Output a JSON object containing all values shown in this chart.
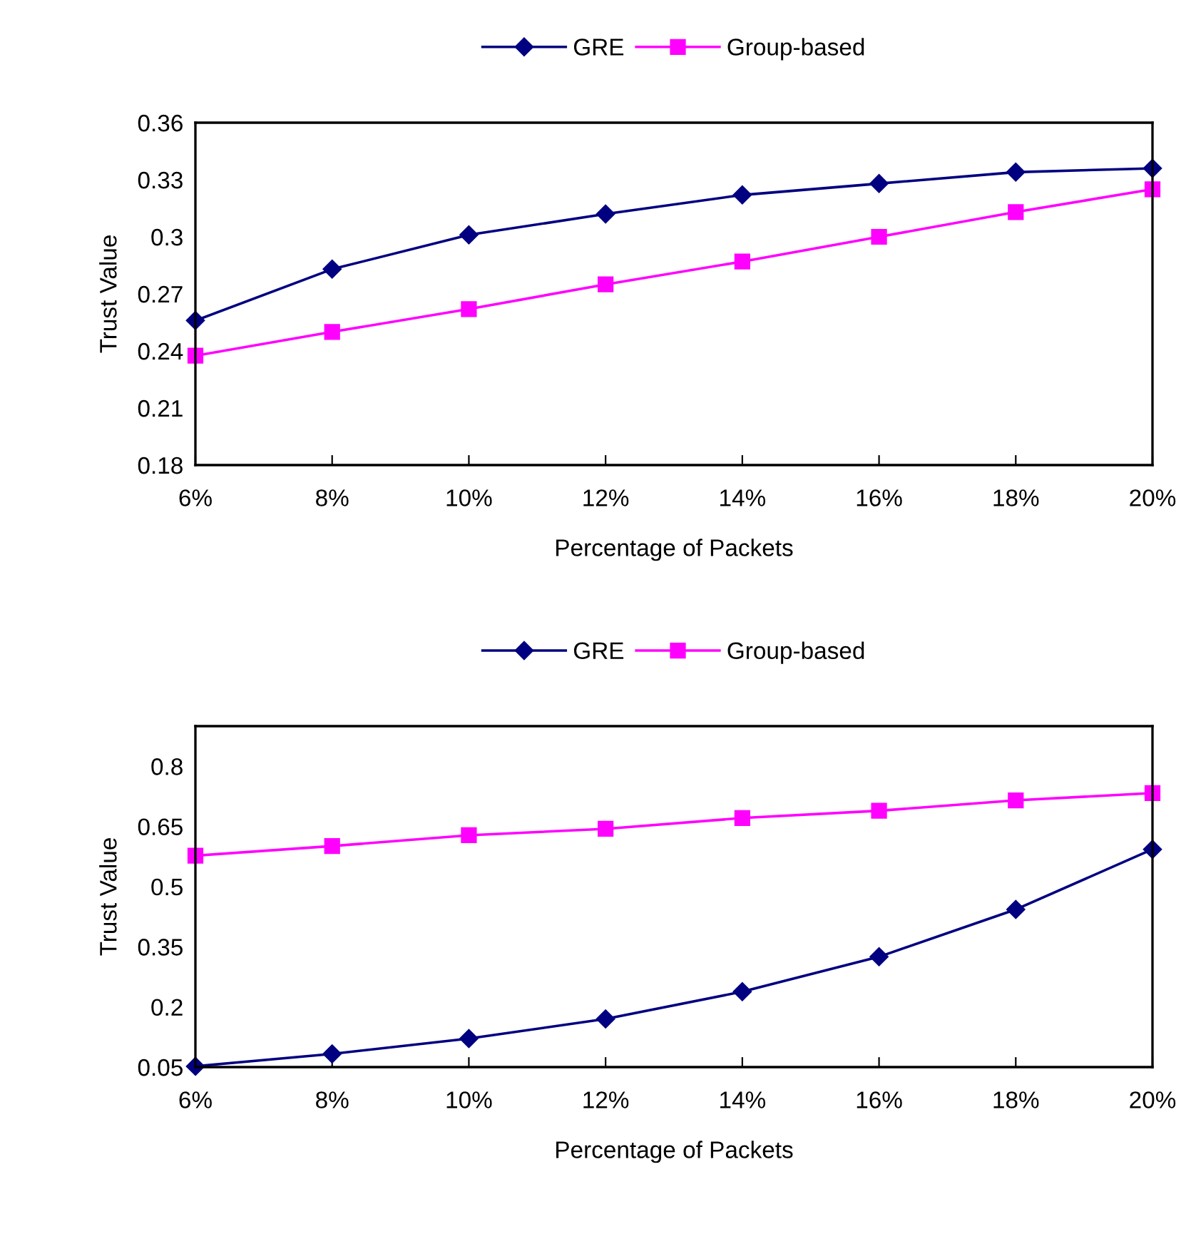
{
  "chart_data": [
    {
      "type": "line",
      "xlabel": "Percentage of Packets",
      "ylabel": "Trust Value",
      "categories": [
        "6%",
        "8%",
        "10%",
        "12%",
        "14%",
        "16%",
        "18%",
        "20%"
      ],
      "series": [
        {
          "name": "GRE",
          "color": "#000080",
          "marker": "diamond",
          "values": [
            0.256,
            0.283,
            0.301,
            0.312,
            0.322,
            0.328,
            0.334,
            0.336
          ]
        },
        {
          "name": "Group-based",
          "color": "#ff00ff",
          "marker": "square",
          "values": [
            0.2375,
            0.25,
            0.262,
            0.275,
            0.287,
            0.3,
            0.313,
            0.325
          ]
        }
      ],
      "ylim": [
        0.18,
        0.36
      ],
      "yticks": [
        0.18,
        0.21,
        0.24,
        0.27,
        0.3,
        0.33,
        0.36
      ],
      "grid": false,
      "legend": "top"
    },
    {
      "type": "line",
      "xlabel": "Percentage of Packets",
      "ylabel": "Trust Value",
      "categories": [
        "6%",
        "8%",
        "10%",
        "12%",
        "14%",
        "16%",
        "18%",
        "20%"
      ],
      "series": [
        {
          "name": "GRE",
          "color": "#000080",
          "marker": "diamond",
          "values": [
            0.052,
            0.083,
            0.121,
            0.17,
            0.238,
            0.325,
            0.443,
            0.593
          ]
        },
        {
          "name": "Group-based",
          "color": "#ff00ff",
          "marker": "square",
          "values": [
            0.577,
            0.601,
            0.628,
            0.644,
            0.671,
            0.689,
            0.715,
            0.733
          ]
        }
      ],
      "ylim": [
        0.05,
        0.9
      ],
      "yticks": [
        0.05,
        0.2,
        0.35,
        0.5,
        0.65,
        0.8
      ],
      "grid": false,
      "legend": "top"
    }
  ]
}
